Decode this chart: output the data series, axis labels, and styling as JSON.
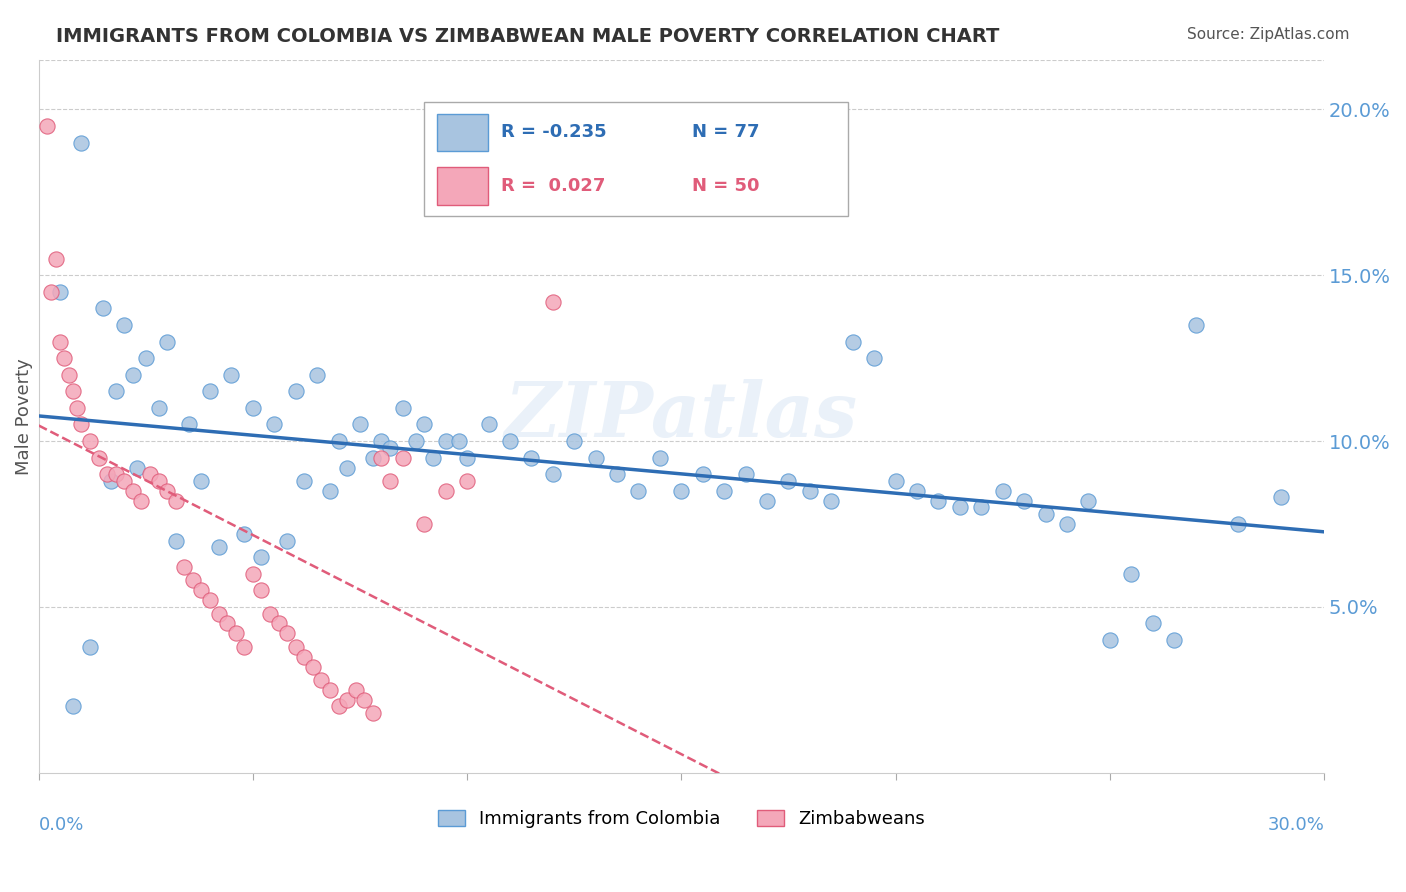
{
  "title": "IMMIGRANTS FROM COLOMBIA VS ZIMBABWEAN MALE POVERTY CORRELATION CHART",
  "source": "Source: ZipAtlas.com",
  "ylabel": "Male Poverty",
  "right_yticks": [
    5.0,
    10.0,
    15.0,
    20.0
  ],
  "right_ytick_labels": [
    "5.0%",
    "10.0%",
    "15.0%",
    "20.0%"
  ],
  "xmin": 0.0,
  "xmax": 0.3,
  "ymin": 0.0,
  "ymax": 0.215,
  "colombia_color": "#a8c4e0",
  "colombia_edge": "#5b9bd5",
  "zimbabwe_color": "#f4a7b9",
  "zimbabwe_edge": "#e05c7a",
  "trend_colombia_color": "#2e6db4",
  "trend_zimbabwe_color": "#e05c7a",
  "legend_R_colombia": "-0.235",
  "legend_N_colombia": "77",
  "legend_R_zimbabwe": "0.027",
  "legend_N_zimbabwe": "50",
  "colombia_scatter_x": [
    0.01,
    0.005,
    0.015,
    0.02,
    0.025,
    0.03,
    0.018,
    0.022,
    0.028,
    0.035,
    0.04,
    0.045,
    0.05,
    0.055,
    0.06,
    0.065,
    0.07,
    0.075,
    0.08,
    0.085,
    0.09,
    0.095,
    0.1,
    0.105,
    0.11,
    0.115,
    0.12,
    0.125,
    0.13,
    0.135,
    0.14,
    0.145,
    0.15,
    0.155,
    0.16,
    0.165,
    0.17,
    0.175,
    0.18,
    0.185,
    0.19,
    0.195,
    0.2,
    0.205,
    0.21,
    0.215,
    0.22,
    0.225,
    0.23,
    0.235,
    0.24,
    0.245,
    0.25,
    0.255,
    0.26,
    0.265,
    0.008,
    0.012,
    0.017,
    0.023,
    0.032,
    0.038,
    0.042,
    0.048,
    0.052,
    0.058,
    0.062,
    0.068,
    0.072,
    0.078,
    0.082,
    0.088,
    0.092,
    0.098,
    0.27,
    0.28,
    0.29
  ],
  "colombia_scatter_y": [
    0.19,
    0.145,
    0.14,
    0.135,
    0.125,
    0.13,
    0.115,
    0.12,
    0.11,
    0.105,
    0.115,
    0.12,
    0.11,
    0.105,
    0.115,
    0.12,
    0.1,
    0.105,
    0.1,
    0.11,
    0.105,
    0.1,
    0.095,
    0.105,
    0.1,
    0.095,
    0.09,
    0.1,
    0.095,
    0.09,
    0.085,
    0.095,
    0.085,
    0.09,
    0.085,
    0.09,
    0.082,
    0.088,
    0.085,
    0.082,
    0.13,
    0.125,
    0.088,
    0.085,
    0.082,
    0.08,
    0.08,
    0.085,
    0.082,
    0.078,
    0.075,
    0.082,
    0.04,
    0.06,
    0.045,
    0.04,
    0.02,
    0.038,
    0.088,
    0.092,
    0.07,
    0.088,
    0.068,
    0.072,
    0.065,
    0.07,
    0.088,
    0.085,
    0.092,
    0.095,
    0.098,
    0.1,
    0.095,
    0.1,
    0.135,
    0.075,
    0.083
  ],
  "zimbabwe_scatter_x": [
    0.002,
    0.003,
    0.004,
    0.005,
    0.006,
    0.007,
    0.008,
    0.009,
    0.01,
    0.012,
    0.014,
    0.016,
    0.018,
    0.02,
    0.022,
    0.024,
    0.026,
    0.028,
    0.03,
    0.032,
    0.034,
    0.036,
    0.038,
    0.04,
    0.042,
    0.044,
    0.046,
    0.048,
    0.05,
    0.052,
    0.054,
    0.056,
    0.058,
    0.06,
    0.062,
    0.064,
    0.066,
    0.068,
    0.07,
    0.072,
    0.074,
    0.076,
    0.078,
    0.08,
    0.082,
    0.085,
    0.09,
    0.095,
    0.1,
    0.12
  ],
  "zimbabwe_scatter_y": [
    0.195,
    0.145,
    0.155,
    0.13,
    0.125,
    0.12,
    0.115,
    0.11,
    0.105,
    0.1,
    0.095,
    0.09,
    0.09,
    0.088,
    0.085,
    0.082,
    0.09,
    0.088,
    0.085,
    0.082,
    0.062,
    0.058,
    0.055,
    0.052,
    0.048,
    0.045,
    0.042,
    0.038,
    0.06,
    0.055,
    0.048,
    0.045,
    0.042,
    0.038,
    0.035,
    0.032,
    0.028,
    0.025,
    0.02,
    0.022,
    0.025,
    0.022,
    0.018,
    0.095,
    0.088,
    0.095,
    0.075,
    0.085,
    0.088,
    0.142
  ],
  "watermark": "ZIPatlas",
  "background_color": "#ffffff",
  "title_color": "#333333",
  "axis_color": "#5b9bd5",
  "grid_color": "#cccccc"
}
